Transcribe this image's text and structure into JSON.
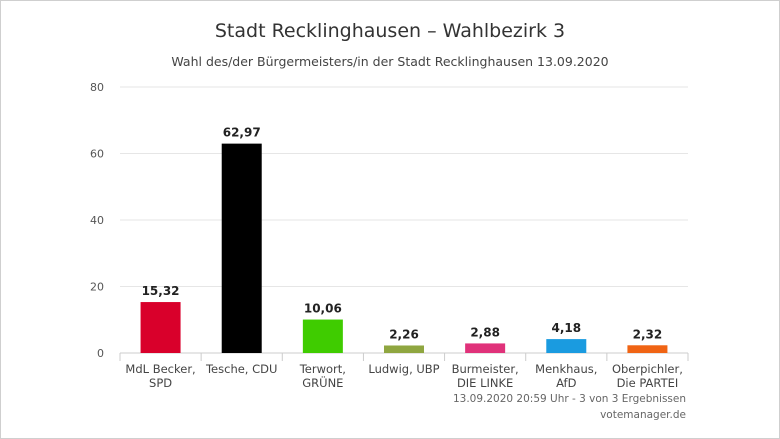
{
  "chart_data": {
    "type": "bar",
    "title": "Stadt Recklinghausen – Wahlbezirk 3",
    "subtitle": "Wahl des/der Bürgermeisters/in der Stadt Recklinghausen 13.09.2020",
    "categories": [
      [
        "MdL Becker,",
        "SPD"
      ],
      [
        "Tesche, CDU"
      ],
      [
        "Terwort,",
        "GRÜNE"
      ],
      [
        "Ludwig, UBP"
      ],
      [
        "Burmeister,",
        "DIE LINKE"
      ],
      [
        "Menkhaus,",
        "AfD"
      ],
      [
        "Oberpichler,",
        "Die PARTEI"
      ]
    ],
    "values": [
      15.32,
      62.97,
      10.06,
      2.26,
      2.88,
      4.18,
      2.32
    ],
    "value_labels": [
      "15,32",
      "62,97",
      "10,06",
      "2,26",
      "2,88",
      "4,18",
      "2,32"
    ],
    "colors": [
      "#d9002b",
      "#000000",
      "#3fcc00",
      "#8fa640",
      "#e0327a",
      "#1a9be0",
      "#f06414"
    ],
    "ylim": [
      0,
      80
    ],
    "yticks": [
      0,
      20,
      40,
      60,
      80
    ],
    "grid": true,
    "legend": "none"
  },
  "footer": {
    "timestamp": "13.09.2020 20:59 Uhr - 3 von 3 Ergebnissen",
    "source": "votemanager.de"
  }
}
